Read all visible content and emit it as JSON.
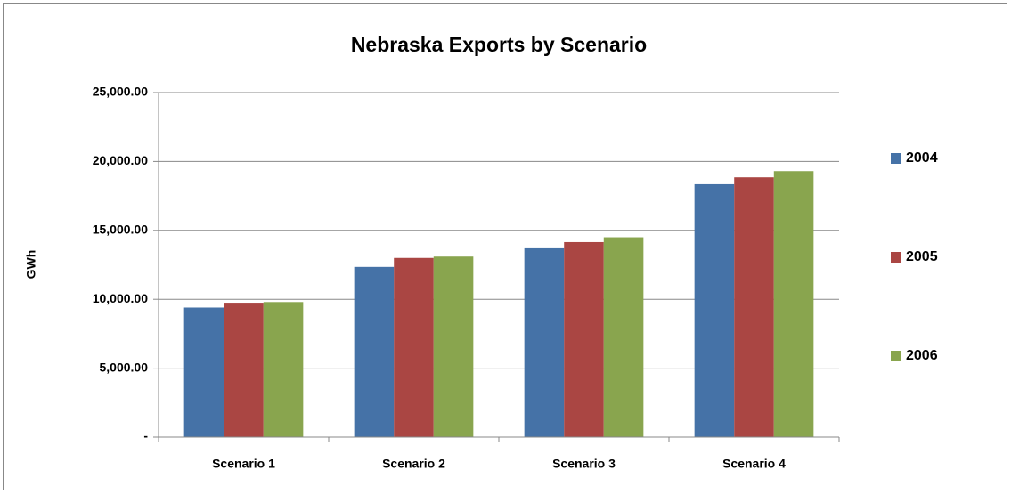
{
  "chart_data": {
    "type": "bar",
    "title": "Nebraska Exports by Scenario",
    "y_label": "GWh",
    "categories": [
      "Scenario 1",
      "Scenario 2",
      "Scenario 3",
      "Scenario 4"
    ],
    "series": [
      {
        "name": "2004",
        "color": "#4572a7",
        "values": [
          9400,
          12350,
          13700,
          18350
        ]
      },
      {
        "name": "2005",
        "color": "#aa4643",
        "values": [
          9750,
          13000,
          14150,
          18850
        ]
      },
      {
        "name": "2006",
        "color": "#89a54e",
        "values": [
          9800,
          13100,
          14500,
          19300
        ]
      }
    ],
    "ylim": [
      0,
      25000
    ],
    "yticks": [
      {
        "value": 0,
        "label": "-"
      },
      {
        "value": 5000,
        "label": "5,000.00"
      },
      {
        "value": 10000,
        "label": "10,000.00"
      },
      {
        "value": 15000,
        "label": "15,000.00"
      },
      {
        "value": 20000,
        "label": "20,000.00"
      },
      {
        "value": 25000,
        "label": "25,000.00"
      }
    ],
    "grid": true,
    "legend": "right"
  }
}
